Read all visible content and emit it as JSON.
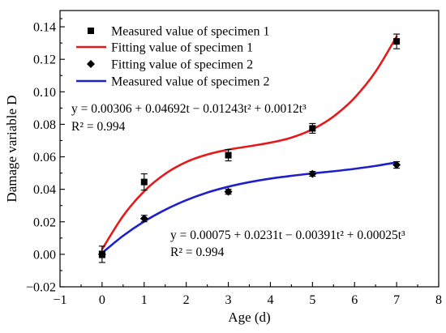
{
  "chart_data": {
    "type": "scatter",
    "xlabel": "Age (d)",
    "ylabel": "Damage variable D",
    "xlim": [
      -1,
      8
    ],
    "ylim": [
      -0.02,
      0.15
    ],
    "x_ticks": [
      -1,
      0,
      1,
      2,
      3,
      4,
      5,
      6,
      7,
      8
    ],
    "x_tick_labels": [
      "−1",
      "0",
      "1",
      "2",
      "3",
      "4",
      "5",
      "6",
      "7",
      "8"
    ],
    "y_ticks": [
      -0.02,
      0.0,
      0.02,
      0.04,
      0.06,
      0.08,
      0.1,
      0.12,
      0.14
    ],
    "y_tick_labels": [
      "−0.02",
      "0.00",
      "0.02",
      "0.04",
      "0.06",
      "0.08",
      "0.10",
      "0.12",
      "0.14"
    ],
    "grid": false,
    "legend_position": "top-left",
    "series": [
      {
        "name": "Measured value of specimen 1",
        "style": "markers",
        "marker": "square",
        "color": "#000000",
        "x": [
          0,
          1,
          3,
          5,
          7
        ],
        "y": [
          0.0,
          0.0445,
          0.061,
          0.0775,
          0.131
        ],
        "error": [
          0.005,
          0.005,
          0.0035,
          0.003,
          0.0045
        ]
      },
      {
        "name": "Fitting value of specimen 1",
        "style": "line",
        "color": "#e41a1c",
        "x": [
          0,
          0.5,
          1,
          1.5,
          2,
          2.5,
          3,
          3.5,
          4,
          4.5,
          5,
          5.5,
          6,
          6.5,
          7
        ],
        "y": [
          0.0031,
          0.0236,
          0.0388,
          0.0495,
          0.0568,
          0.0614,
          0.0644,
          0.0665,
          0.0687,
          0.0718,
          0.0769,
          0.0848,
          0.0963,
          0.1124,
          0.134
        ]
      },
      {
        "name": "Fitting value of specimen 2",
        "style": "markers",
        "marker": "diamond",
        "color": "#000000",
        "x": [
          0,
          1,
          3,
          5,
          7
        ],
        "y": [
          0.0,
          0.022,
          0.0385,
          0.0495,
          0.055
        ],
        "error": [
          0.002,
          0.002,
          0.0015,
          0.0015,
          0.002
        ]
      },
      {
        "name": "Measured value of specimen 2",
        "style": "line",
        "color": "#1f1fcc",
        "x": [
          0,
          0.5,
          1,
          1.5,
          2,
          2.5,
          3,
          3.5,
          4,
          4.5,
          5,
          5.5,
          6,
          6.5,
          7
        ],
        "y": [
          0.0008,
          0.0114,
          0.0202,
          0.0274,
          0.0333,
          0.038,
          0.0416,
          0.0444,
          0.0466,
          0.0483,
          0.0498,
          0.0511,
          0.0526,
          0.0544,
          0.0566
        ]
      }
    ],
    "annotations": [
      {
        "text": "y = 0.00306 + 0.04692t − 0.01243t² + 0.0012t³"
      },
      {
        "text": "R² = 0.994"
      },
      {
        "text": "y = 0.00075 + 0.0231t − 0.00391t² + 0.00025t³"
      },
      {
        "text": "R² = 0.994"
      }
    ]
  }
}
